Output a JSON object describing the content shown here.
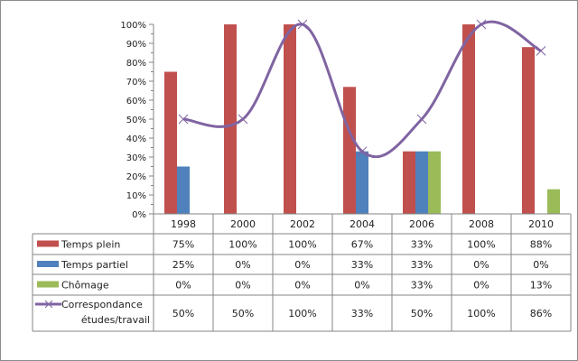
{
  "chart_data": {
    "type": "bar",
    "title": "",
    "xlabel": "",
    "ylabel": "",
    "ylim": [
      0,
      100
    ],
    "y_ticks": [
      "0%",
      "10%",
      "20%",
      "30%",
      "40%",
      "50%",
      "60%",
      "70%",
      "80%",
      "90%",
      "100%"
    ],
    "categories": [
      "1998",
      "2000",
      "2002",
      "2004",
      "2006",
      "2008",
      "2010"
    ],
    "legend_placement": "data-table",
    "series": [
      {
        "name": "Temps plein",
        "kind": "bar",
        "color": "#c0504d",
        "values": [
          75,
          100,
          100,
          67,
          33,
          100,
          88
        ],
        "labels": [
          "75%",
          "100%",
          "100%",
          "67%",
          "33%",
          "100%",
          "88%"
        ]
      },
      {
        "name": "Temps partiel",
        "kind": "bar",
        "color": "#4f81bd",
        "values": [
          25,
          0,
          0,
          33,
          33,
          0,
          0
        ],
        "labels": [
          "25%",
          "0%",
          "0%",
          "33%",
          "33%",
          "0%",
          "0%"
        ]
      },
      {
        "name": "Chômage",
        "kind": "bar",
        "color": "#9bbb59",
        "values": [
          0,
          0,
          0,
          0,
          33,
          0,
          13
        ],
        "labels": [
          "0%",
          "0%",
          "0%",
          "0%",
          "33%",
          "0%",
          "13%"
        ]
      },
      {
        "name": "Correspondance études/travail",
        "name_lines": [
          "Correspondance",
          "études/travail"
        ],
        "kind": "line",
        "color": "#8064a2",
        "values": [
          50,
          50,
          100,
          33,
          50,
          100,
          86
        ],
        "labels": [
          "50%",
          "50%",
          "100%",
          "33%",
          "50%",
          "100%",
          "86%"
        ]
      }
    ]
  }
}
